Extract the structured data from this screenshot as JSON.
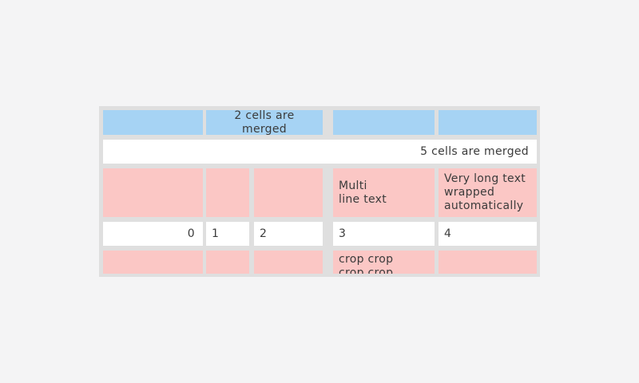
{
  "colors": {
    "page_bg": "#f4f4f5",
    "table_frame": "#dfdfdf",
    "header_blue": "#a6d3f4",
    "row_pink": "#fbc7c5",
    "row_white": "#ffffff",
    "text": "#3b3b3b"
  },
  "table": {
    "row1": {
      "c1": "",
      "merged": "2 cells are merged",
      "c4": "",
      "c5": ""
    },
    "row2": {
      "merged": "5 cells are merged"
    },
    "row3": {
      "c1": "",
      "c2": "",
      "c3": "",
      "c4": "Multi\nline text",
      "c5": "Very long text\nwrapped\nautomatically"
    },
    "row4": {
      "c1": "0",
      "c2": "1",
      "c3": "2",
      "c4": "3",
      "c5": "4"
    },
    "row5": {
      "c1": "",
      "c2": "",
      "c3": "",
      "c4": "crop crop\ncrop crop",
      "c5": ""
    }
  }
}
